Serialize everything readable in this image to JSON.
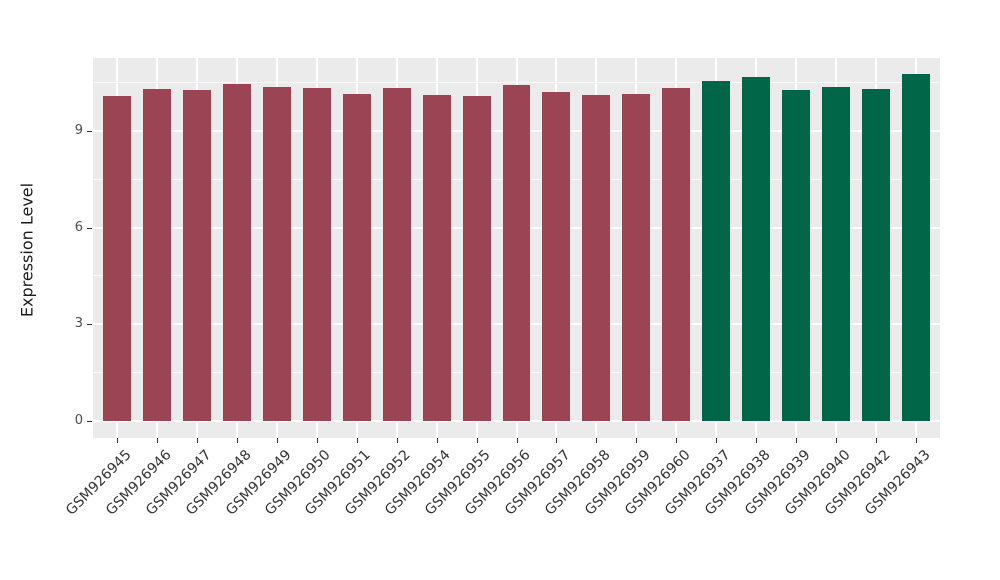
{
  "chart_data": {
    "type": "bar",
    "title": "",
    "xlabel": "",
    "ylabel": "Expression Level",
    "categories": [
      "GSM926945",
      "GSM926946",
      "GSM926947",
      "GSM926948",
      "GSM926949",
      "GSM926950",
      "GSM926951",
      "GSM926952",
      "GSM926954",
      "GSM926955",
      "GSM926956",
      "GSM926957",
      "GSM926958",
      "GSM926959",
      "GSM926960",
      "GSM926937",
      "GSM926938",
      "GSM926939",
      "GSM926940",
      "GSM926942",
      "GSM926943"
    ],
    "values": [
      10.1,
      10.3,
      10.27,
      10.46,
      10.38,
      10.34,
      10.16,
      10.34,
      10.13,
      10.1,
      10.44,
      10.22,
      10.13,
      10.16,
      10.34,
      10.56,
      10.69,
      10.27,
      10.36,
      10.32,
      10.76
    ],
    "groups": [
      {
        "name": "group-red",
        "color": "#9B4453",
        "count": 15
      },
      {
        "name": "group-green",
        "color": "#006647",
        "count": 6
      }
    ],
    "ylim": [
      -0.54,
      11.27
    ],
    "y_ticks": [
      0,
      3,
      6,
      9
    ],
    "y_minor_ticks": [
      1.5,
      4.5,
      7.5,
      10.5
    ],
    "grid": true,
    "legend": "none",
    "panel_background": "#EBEBEB",
    "grid_color": "#FFFFFF",
    "axis_text_color": "#4D4D4D",
    "x_label_angle_deg": 45
  }
}
